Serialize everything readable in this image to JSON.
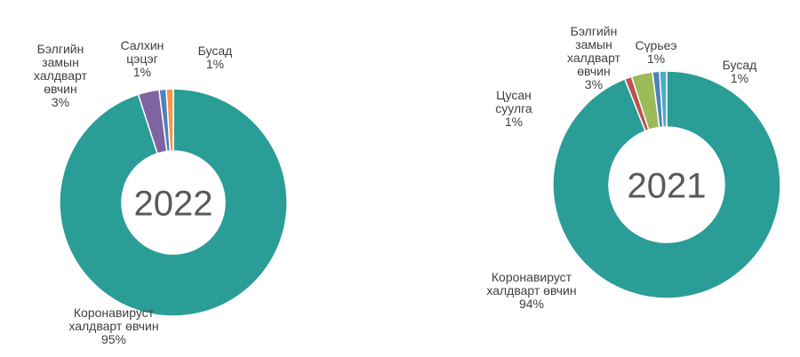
{
  "chart_data": [
    {
      "type": "donut",
      "title": "2022",
      "categories": [
        "Коронавируст халдварт өвчин",
        "Бэлгийн замын халдварт өвчин",
        "Салхин цэцэг",
        "Бусад"
      ],
      "values": [
        95,
        3,
        1,
        1
      ],
      "value_labels": [
        "95%",
        "3%",
        "1%",
        "1%"
      ],
      "colors": [
        "#2a9d97",
        "#8064a2",
        "#4f81bd",
        "#f79646"
      ]
    },
    {
      "type": "donut",
      "title": "2021",
      "categories": [
        "Коронавируст халдварт өвчин",
        "Цусан суулга",
        "Бэлгийн замын халдварт өвчин",
        "Сүрьеэ",
        "Бусад"
      ],
      "values": [
        94,
        1,
        3,
        1,
        1
      ],
      "value_labels": [
        "94%",
        "1%",
        "3%",
        "1%",
        "1%"
      ],
      "colors": [
        "#2a9d97",
        "#c0504d",
        "#9bbb59",
        "#4f81bd",
        "#4bacc6"
      ]
    }
  ]
}
